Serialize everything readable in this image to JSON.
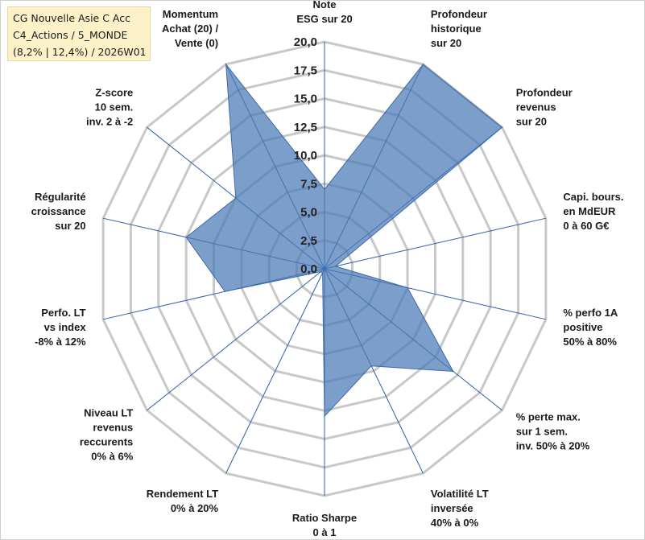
{
  "title": {
    "line1": "CG Nouvelle Asie C Acc",
    "line2": "C4_Actions / 5_MONDE",
    "line3": "(8,2% | 12,4%) / 2026W01"
  },
  "colors": {
    "fill": "#4a78b5",
    "stroke": "#3f6aa6",
    "grid": "#c8c8c8",
    "spoke": "#2e5fa8"
  },
  "chart_data": {
    "type": "radar",
    "title": "CG Nouvelle Asie C Acc",
    "rlim": [
      0,
      20
    ],
    "rticks": [
      "0,0",
      "2,5",
      "5,0",
      "7,5",
      "10,0",
      "12,5",
      "15,0",
      "17,5",
      "20,0"
    ],
    "categories": [
      [
        "Note",
        "ESG sur 20"
      ],
      [
        "Profondeur",
        "historique",
        "sur 20"
      ],
      [
        "Profondeur",
        "revenus",
        "sur 20"
      ],
      [
        "Capi. bours.",
        "en MdEUR",
        "0 à 60 G€"
      ],
      [
        "% perfo 1A",
        "positive",
        "50% à 80%"
      ],
      [
        "% perte max.",
        "sur 1 sem.",
        "inv. 50% à 20%"
      ],
      [
        "Volatilité LT",
        "inversée",
        "40% à 0%"
      ],
      [
        "Ratio Sharpe",
        "0 à 1"
      ],
      [
        "Rendement LT",
        "0% à 20%"
      ],
      [
        "Niveau LT",
        "revenus",
        "reccurents",
        "0% à 6%"
      ],
      [
        "Perfo. LT",
        "vs index",
        "-8% à 12%"
      ],
      [
        "Régularité",
        "croissance",
        "sur 20"
      ],
      [
        "Z-score",
        "10 sem.",
        "inv. 2 à -2"
      ],
      [
        "Momentum",
        "Achat (20) /",
        "Vente (0)"
      ]
    ],
    "series": [
      {
        "name": "CG Nouvelle Asie C Acc",
        "values": [
          7.0,
          20.0,
          20.0,
          1.0,
          7.5,
          14.5,
          9.5,
          13.0,
          0.4,
          0.4,
          9.0,
          12.5,
          10.0,
          20.0
        ]
      }
    ]
  }
}
